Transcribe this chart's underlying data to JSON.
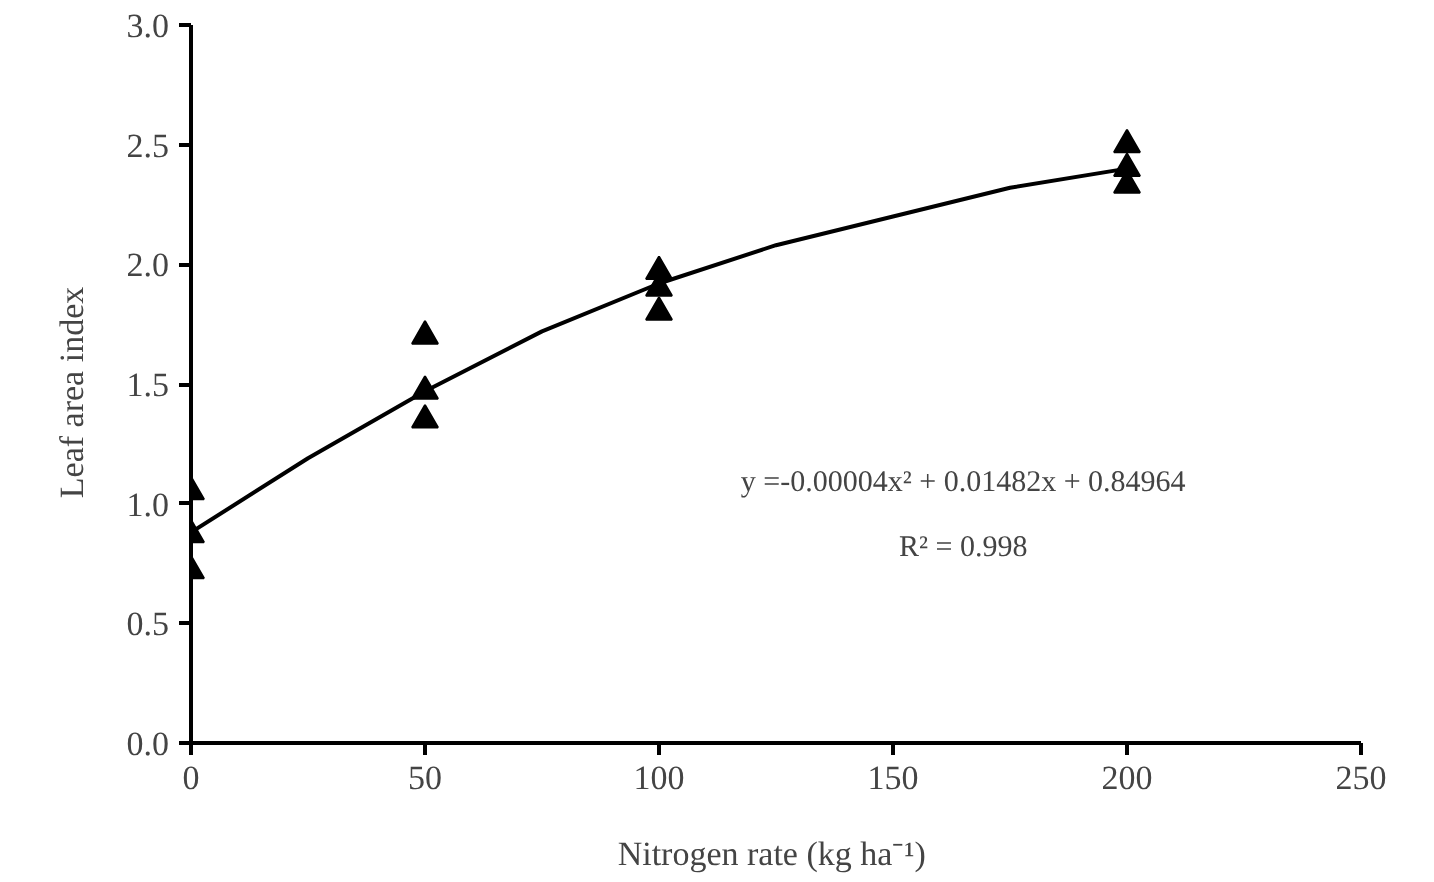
{
  "chart_data": {
    "type": "scatter",
    "xlabel": "Nitrogen rate  (kg ha⁻¹)",
    "ylabel": "Leaf  area  index",
    "xlim": [
      0,
      250
    ],
    "xticks": [
      0,
      50,
      100,
      150,
      200,
      250
    ],
    "ylim": [
      0,
      3.0
    ],
    "yticks": [
      {
        "value": 0,
        "label": "0.0"
      },
      {
        "value": 0.5,
        "label": "0.5"
      },
      {
        "value": 1.0,
        "label": "1.0"
      },
      {
        "value": 1.5,
        "label": "1.5"
      },
      {
        "value": 2.0,
        "label": "2.0"
      },
      {
        "value": 2.5,
        "label": "2.5"
      },
      {
        "value": 3.0,
        "label": "3.0"
      }
    ],
    "grid": false,
    "marker": "triangle",
    "series": [
      {
        "color": "#000000",
        "x": [
          0,
          0,
          0,
          50,
          50,
          50,
          100,
          100,
          100,
          200,
          200,
          200
        ],
        "values": [
          1.05,
          0.87,
          0.72,
          1.7,
          1.47,
          1.35,
          1.97,
          1.9,
          1.8,
          2.5,
          2.4,
          2.33
        ]
      },
      {
        "type": "line",
        "color": "#000000",
        "marker": "none",
        "line_style": "solid",
        "x": [
          0,
          25,
          50,
          75,
          100,
          125,
          150,
          175,
          200
        ],
        "values": [
          0.88,
          1.19,
          1.47,
          1.72,
          1.92,
          2.08,
          2.2,
          2.32,
          2.4
        ]
      }
    ],
    "annotations": [
      "y =-0.00004x² + 0.01482x + 0.84964",
      "R² = 0.998"
    ]
  }
}
